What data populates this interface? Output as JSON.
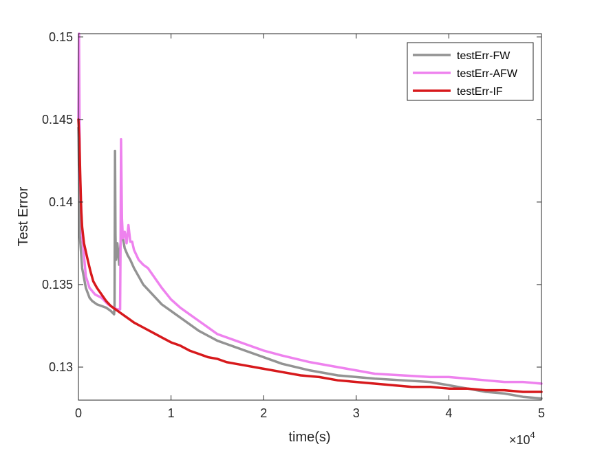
{
  "chart_data": {
    "type": "line",
    "title": "",
    "xlabel": "time(s)",
    "ylabel": "Test Error",
    "x_exponent_label": "×10",
    "x_exponent_power": "4",
    "xlim": [
      0,
      50000
    ],
    "ylim": [
      0.128,
      0.1502
    ],
    "x_ticks": [
      0,
      10000,
      20000,
      30000,
      40000,
      50000
    ],
    "x_tick_labels": [
      "0",
      "1",
      "2",
      "3",
      "4",
      "5"
    ],
    "y_ticks": [
      0.13,
      0.135,
      0.14,
      0.145,
      0.15
    ],
    "y_tick_labels": [
      "0.13",
      "0.135",
      "0.14",
      "0.145",
      "0.15"
    ],
    "grid": false,
    "legend_position": "top-right",
    "series": [
      {
        "name": "testErr-FW",
        "color": "#939393",
        "x": [
          0,
          150,
          400,
          800,
          1200,
          1500,
          2000,
          2500,
          3000,
          3500,
          3850,
          3900,
          3950,
          4000,
          4050,
          4200,
          4400,
          4600,
          4800,
          5000,
          5300,
          5600,
          6000,
          6500,
          7000,
          8000,
          9000,
          10000,
          11000,
          12000,
          13000,
          14000,
          15000,
          16000,
          17000,
          18000,
          20000,
          22000,
          25000,
          28000,
          30000,
          32000,
          35000,
          38000,
          40000,
          42000,
          44000,
          46000,
          48000,
          50000
        ],
        "y": [
          0.1445,
          0.138,
          0.136,
          0.1348,
          0.1342,
          0.134,
          0.1338,
          0.1337,
          0.1336,
          0.1334,
          0.1332,
          0.1336,
          0.1431,
          0.138,
          0.1365,
          0.1375,
          0.1362,
          0.138,
          0.1378,
          0.1372,
          0.1368,
          0.1365,
          0.136,
          0.1355,
          0.135,
          0.1344,
          0.1338,
          0.1334,
          0.133,
          0.1326,
          0.1322,
          0.1319,
          0.1316,
          0.1314,
          0.1312,
          0.131,
          0.1306,
          0.1302,
          0.1298,
          0.1295,
          0.1294,
          0.1293,
          0.1292,
          0.1291,
          0.1289,
          0.1287,
          0.1285,
          0.1284,
          0.1282,
          0.1281
        ]
      },
      {
        "name": "testErr-AFW",
        "color": "#EE82EE",
        "x": [
          0,
          60,
          150,
          400,
          800,
          1200,
          1800,
          2500,
          3200,
          3800,
          4200,
          4500,
          4550,
          4600,
          4700,
          4800,
          5000,
          5200,
          5400,
          5600,
          5800,
          6000,
          6500,
          7000,
          7500,
          8000,
          9000,
          10000,
          11000,
          12000,
          13000,
          14000,
          15000,
          16000,
          17000,
          18000,
          20000,
          22000,
          25000,
          28000,
          30000,
          32000,
          35000,
          38000,
          40000,
          42000,
          44000,
          46000,
          48000,
          50000
        ],
        "y": [
          0.145,
          0.1502,
          0.142,
          0.138,
          0.1355,
          0.1348,
          0.1344,
          0.1342,
          0.1338,
          0.1336,
          0.1335,
          0.1335,
          0.1375,
          0.1438,
          0.139,
          0.1378,
          0.1382,
          0.1375,
          0.1386,
          0.1376,
          0.1376,
          0.1371,
          0.1365,
          0.1362,
          0.136,
          0.1356,
          0.1348,
          0.1341,
          0.1336,
          0.1332,
          0.1328,
          0.1324,
          0.132,
          0.1318,
          0.1316,
          0.1314,
          0.131,
          0.1307,
          0.1303,
          0.13,
          0.1298,
          0.1296,
          0.1295,
          0.1294,
          0.1294,
          0.1293,
          0.1292,
          0.1291,
          0.1291,
          0.129
        ]
      },
      {
        "name": "testErr-IF",
        "color": "#D7191C",
        "x": [
          0,
          100,
          200,
          300,
          400,
          600,
          800,
          1000,
          1300,
          1600,
          2000,
          2500,
          3000,
          3500,
          4000,
          4500,
          5000,
          5500,
          6000,
          7000,
          8000,
          9000,
          10000,
          11000,
          12000,
          13000,
          14000,
          15000,
          16000,
          17000,
          18000,
          20000,
          22000,
          24000,
          26000,
          28000,
          30000,
          32000,
          34000,
          36000,
          38000,
          40000,
          42000,
          44000,
          46000,
          48000,
          50000
        ],
        "y": [
          0.145,
          0.1438,
          0.1415,
          0.1395,
          0.1385,
          0.1375,
          0.137,
          0.1365,
          0.1358,
          0.1352,
          0.1348,
          0.1344,
          0.134,
          0.1337,
          0.1335,
          0.1333,
          0.1331,
          0.1329,
          0.1327,
          0.1324,
          0.1321,
          0.1318,
          0.1315,
          0.1313,
          0.131,
          0.1308,
          0.1306,
          0.1305,
          0.1303,
          0.1302,
          0.1301,
          0.1299,
          0.1297,
          0.1295,
          0.1294,
          0.1292,
          0.1291,
          0.129,
          0.1289,
          0.1288,
          0.1288,
          0.1287,
          0.1287,
          0.1286,
          0.1286,
          0.1285,
          0.1285
        ]
      }
    ]
  }
}
